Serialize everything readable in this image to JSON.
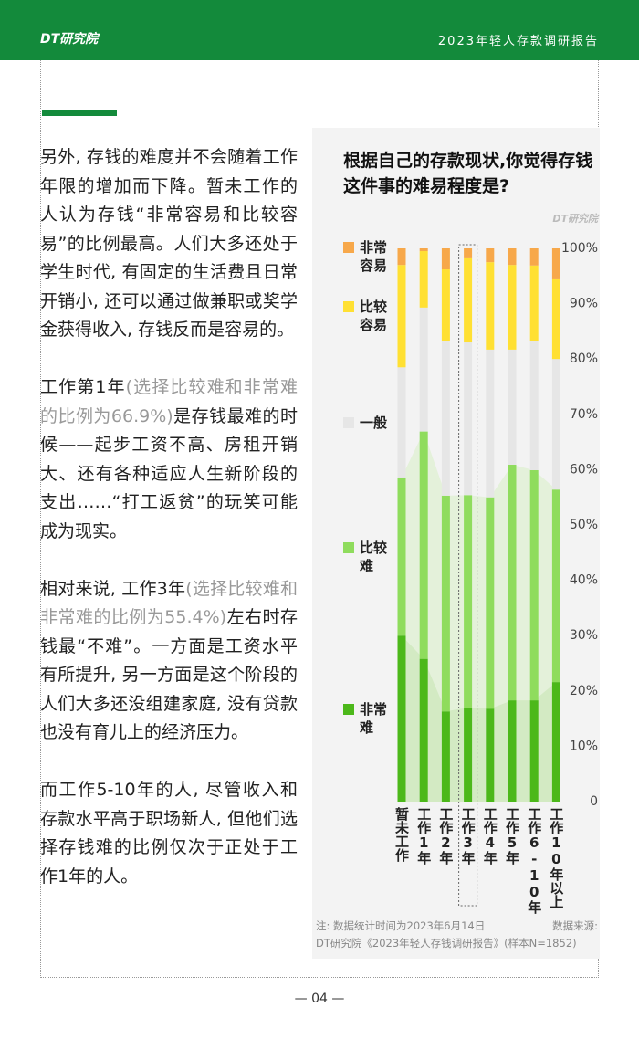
{
  "header": {
    "logo": "DT研究院",
    "report": "2023年轻人存款调研报告"
  },
  "body": {
    "paragraphs": [
      [
        {
          "text": "另外, 存钱的难度并不会随着工作年限的增加而下降。暂未工作的人认为存钱“非常容易和比较容易”的比例最高。人们大多还处于学生时代, 有固定的生活费且日常开销小, 还可以通过做兼职或奖学金获得收入, 存钱反而是容易的。",
          "muted": false
        }
      ],
      [
        {
          "text": "工作第1年",
          "muted": false
        },
        {
          "text": "(选择比较难和非常难的比例为66.9%)",
          "muted": true
        },
        {
          "text": "是存钱最难的时候——起步工资不高、房租开销大、还有各种适应人生新阶段的支出……“打工返贫”的玩笑可能成为现实。",
          "muted": false
        }
      ],
      [
        {
          "text": "相对来说, 工作3年",
          "muted": false
        },
        {
          "text": "(选择比较难和非常难的比例为55.4%)",
          "muted": true
        },
        {
          "text": "左右时存钱最“不难”。一方面是工资水平有所提升, 另一方面是这个阶段的人们大多还没组建家庭, 没有贷款也没有育儿上的经济压力。",
          "muted": false
        }
      ],
      [
        {
          "text": "而工作5-10年的人, 尽管收入和存款水平高于职场新人, 但他们选择存钱难的比例仅次于正处于工作1年的人。",
          "muted": false
        }
      ]
    ]
  },
  "chart_data": {
    "type": "stacked_bar",
    "title": "根据自己的存款现状,你觉得存钱这件事的难易程度是?",
    "watermark": "DT研究院",
    "categories": [
      "暂未工作",
      "工作1年",
      "工作2年",
      "工作3年",
      "工作4年",
      "工作5年",
      "工作6-10年",
      "工作10年以上"
    ],
    "series": [
      {
        "name": "非常难",
        "color": "#4cb81a",
        "values": [
          30.0,
          25.8,
          16.3,
          17.0,
          16.8,
          18.3,
          18.3,
          21.6
        ]
      },
      {
        "name": "比较难",
        "color": "#8fdc5d",
        "values": [
          28.6,
          41.1,
          39.0,
          38.4,
          38.2,
          42.6,
          41.6,
          34.8
        ]
      },
      {
        "name": "一般",
        "color": "#e6e6e6",
        "values": [
          19.9,
          22.4,
          28.0,
          27.6,
          26.7,
          20.8,
          23.4,
          23.6
        ]
      },
      {
        "name": "比较容易",
        "color": "#ffe033",
        "values": [
          18.5,
          10.2,
          12.9,
          15.2,
          15.8,
          15.3,
          13.6,
          14.4
        ]
      },
      {
        "name": "非常容易",
        "color": "#f7a84a",
        "values": [
          3.0,
          0.5,
          3.8,
          1.8,
          2.5,
          3.0,
          3.1,
          5.6
        ]
      }
    ],
    "ylim": [
      0,
      100
    ],
    "yticks": [
      0,
      {
        "value": 10,
        "label": "10%"
      },
      {
        "value": 20,
        "label": "20%"
      },
      {
        "value": 30,
        "label": "30%"
      },
      {
        "value": 40,
        "label": "40%"
      },
      {
        "value": 50,
        "label": "50%"
      },
      {
        "value": 60,
        "label": "60%"
      },
      {
        "value": 70,
        "label": "70%"
      },
      {
        "value": 80,
        "label": "80%"
      },
      {
        "value": 90,
        "label": "90%"
      },
      {
        "value": 100,
        "label": "100%"
      }
    ],
    "highlight": 3,
    "note": "注: 数据统计时间为2023年6月14日",
    "source_label": "数据来源:",
    "source": "DT研究院《2023年轻人存钱调研报告》(样本N=1852)"
  },
  "footer": {
    "page": "— 04 —"
  }
}
